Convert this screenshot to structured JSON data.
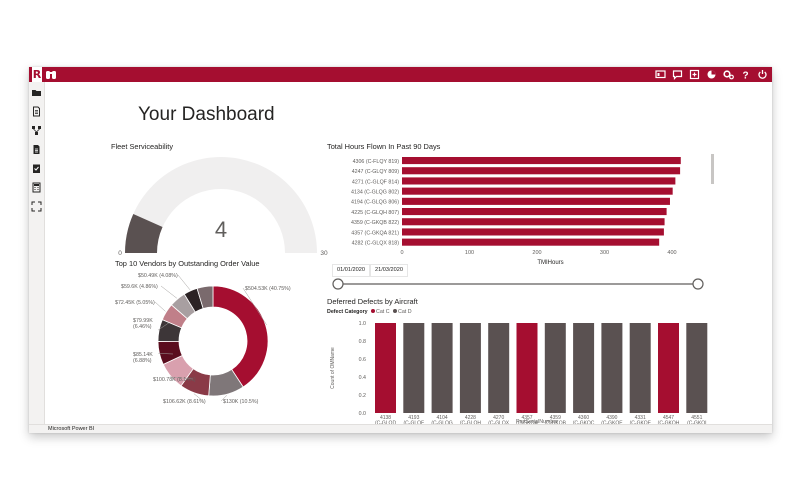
{
  "app": {
    "logo_letter": "R",
    "status": "Microsoft Power BI"
  },
  "colors": {
    "brand": "#a50e30",
    "cat_c": "#a50e30",
    "cat_d": "#5a5151",
    "gauge_fill": "#5a5151",
    "gauge_track": "#f0efef"
  },
  "icons": {
    "top": [
      "binoculars-icon"
    ],
    "right": [
      "present-icon",
      "comment-icon",
      "add-icon",
      "pie-icon",
      "settings-icon",
      "help-icon",
      "power-icon"
    ],
    "sidebar": [
      "folder-icon",
      "document-icon",
      "hierarchy-icon",
      "report-icon",
      "checklist-icon",
      "calculator-icon",
      "fullscreen-icon"
    ]
  },
  "page": {
    "title": "Your Dashboard"
  },
  "gauge": {
    "title": "Fleet Serviceability",
    "value": "4",
    "min": "0",
    "max": "30",
    "value_num": 4,
    "max_num": 30
  },
  "hours_chart": {
    "title": "Total Hours Flown In Past 90 Days",
    "chart_data": {
      "type": "bar",
      "orientation": "horizontal",
      "categories": [
        "4306 (C-FLQY 819)",
        "4247 (C-GLQY 809)",
        "4271 (C-GLQF 814)",
        "4134 (C-GLQG 802)",
        "4194 (C-GLQG 806)",
        "4225 (C-GLQH 807)",
        "4359 (C-GKQB 822)",
        "4357 (C-GKQA 821)",
        "4282 (C-GLQX 818)"
      ],
      "values": [
        413,
        412,
        405,
        401,
        397,
        392,
        389,
        388,
        381
      ],
      "xticks": [
        "0",
        "100",
        "200",
        "300",
        "400"
      ],
      "xlim": [
        0,
        440
      ],
      "xlabel": "TMIHours"
    }
  },
  "vendors_chart": {
    "title": "Top 10 Vendors by Outstanding Order Value",
    "chart_data": {
      "type": "pie",
      "donut": true,
      "values": [
        40.75,
        10.5,
        8.61,
        8.14,
        6.88,
        6.46,
        5.05,
        4.86,
        4.08,
        4.67
      ],
      "colors": [
        "#a50e30",
        "#7f7779",
        "#8a3a47",
        "#d9a0ae",
        "#5a0d1e",
        "#3d3638",
        "#c07f89",
        "#a89fa1",
        "#2b2224",
        "#7a6a6d"
      ],
      "labels": [
        "$504.53K (40.75%)",
        "$130K (10.5%)",
        "$106.62K (8.61%)",
        "$100.78K (8.14%)",
        "$85.14K\n(6.88%)",
        "$79.99K\n(6.46%)",
        "$72.45K (5.05%)",
        "$59.6K (4.86%)",
        "$50.49K (4.08%)",
        ""
      ]
    }
  },
  "slicer": {
    "start": "01/01/2020",
    "end": "21/03/2020"
  },
  "defects_chart": {
    "title": "Deferred Defects by Aircraft",
    "legend_title": "Defect Category",
    "legend": [
      {
        "name": "Cat C",
        "color": "#a50e30"
      },
      {
        "name": "Cat D",
        "color": "#5a5151"
      }
    ],
    "chart_data": {
      "type": "bar",
      "categories": [
        [
          "4138",
          "(C-GLQD",
          "803)"
        ],
        [
          "4193",
          "(C-GLQF",
          "805)"
        ],
        [
          "4104",
          "(C-GLQG",
          "806)"
        ],
        [
          "4228",
          "(C-GLQH",
          "808)"
        ],
        [
          "4270",
          "(C-GLQX",
          "813)"
        ],
        [
          "4357",
          "(C-GKQA",
          "821)"
        ],
        [
          "4359",
          "(C-GKQB",
          "822)"
        ],
        [
          "4360",
          "(C-GKQC",
          "823)"
        ],
        [
          "4390",
          "(C-GKQE",
          "825)"
        ],
        [
          "4331",
          "(C-GKQF",
          "826)"
        ],
        [
          "4547",
          "(C-GKQH",
          "828)"
        ],
        [
          "4551",
          "(C-GKQI",
          "829)"
        ]
      ],
      "values": [
        1,
        1,
        1,
        1,
        1,
        1,
        1,
        1,
        1,
        1,
        1,
        1
      ],
      "category": [
        "Cat C",
        "Cat D",
        "Cat D",
        "Cat D",
        "Cat D",
        "Cat C",
        "Cat D",
        "Cat D",
        "Cat D",
        "Cat D",
        "Cat C",
        "Cat D"
      ],
      "yticks": [
        "1.0",
        "0.8",
        "0.6",
        "0.4",
        "0.2",
        "0.0"
      ],
      "ylim": [
        0,
        1
      ],
      "ylabel": "Count of OMName",
      "xlabel": "PartSerialNumber"
    }
  }
}
